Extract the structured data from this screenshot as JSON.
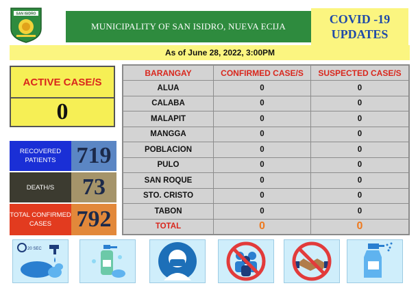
{
  "header": {
    "municipality": "MUNICIPALITY OF SAN ISIDRO, NUEVA ECIJA",
    "covid_line1": "COVID -19",
    "covid_line2": "UPDATES",
    "logo_text": "SAN ISIDRO"
  },
  "date_text": "As of June 28, 2022, 3:00PM",
  "active": {
    "label": "ACTIVE CASE/S",
    "value": "0"
  },
  "stats": {
    "recovered": {
      "label": "RECOVERED PATIENTS",
      "value": "719"
    },
    "deaths": {
      "label": "DEATH/S",
      "value": "73"
    },
    "total": {
      "label": "TOTAL CONFIRMED CASES",
      "value": "792"
    }
  },
  "table": {
    "headers": [
      "BARANGAY",
      "CONFIRMED CASE/S",
      "SUSPECTED CASE/S"
    ],
    "rows": [
      [
        "ALUA",
        "0",
        "0"
      ],
      [
        "CALABA",
        "0",
        "0"
      ],
      [
        "MALAPIT",
        "0",
        "0"
      ],
      [
        "MANGGA",
        "0",
        "0"
      ],
      [
        "POBLACION",
        "0",
        "0"
      ],
      [
        "PULO",
        "0",
        "0"
      ],
      [
        "SAN ROQUE",
        "0",
        "0"
      ],
      [
        "STO. CRISTO",
        "0",
        "0"
      ],
      [
        "TABON",
        "0",
        "0"
      ]
    ],
    "total": [
      "TOTAL",
      "0",
      "0"
    ]
  },
  "icons": [
    "handwashing-icon",
    "sanitizer-icon",
    "face-mask-icon",
    "no-crowd-icon",
    "no-handshake-icon",
    "disinfectant-spray-icon"
  ],
  "icon_texts": {
    "timer": "20 SEC"
  },
  "colors": {
    "header_green": "#2e8b3e",
    "banner_yellow": "#fbf580",
    "accent_red": "#d9261c",
    "recovered_blue": "#1a2fd6",
    "total_orange": "#e2883a"
  }
}
